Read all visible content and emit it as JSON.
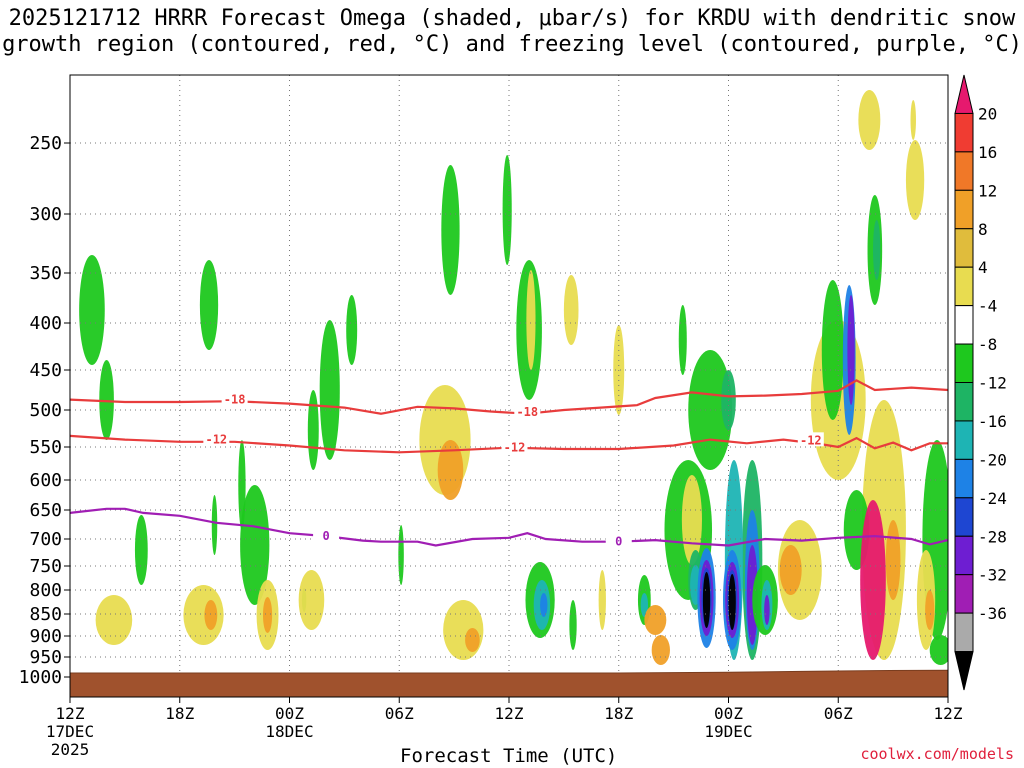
{
  "page": {
    "title_line1": "2025121712 HRRR Forecast Omega (shaded, μbar/s) for KRDU with dendritic snow",
    "title_line2": "growth region (contoured, red, °C) and freezing level (contoured, purple, °C)",
    "credit": "coolwx.com/models"
  },
  "chart_data": {
    "type": "heatmap",
    "title": "2025121712 HRRR Forecast Omega (shaded, μbar/s) for KRDU with dendritic snow growth region (contoured, red, °C) and freezing level (contoured, purple, °C)",
    "xlabel": "Forecast Time (UTC)",
    "ylabel": "",
    "x_range_hours": [
      0,
      48
    ],
    "y_range_hPa": [
      1000,
      200
    ],
    "x_ticks": [
      {
        "h": 0,
        "lines": [
          "12Z",
          "17DEC",
          "2025"
        ]
      },
      {
        "h": 6,
        "lines": [
          "18Z"
        ]
      },
      {
        "h": 12,
        "lines": [
          "00Z",
          "18DEC"
        ]
      },
      {
        "h": 18,
        "lines": [
          "06Z"
        ]
      },
      {
        "h": 24,
        "lines": [
          "12Z"
        ]
      },
      {
        "h": 30,
        "lines": [
          "18Z"
        ]
      },
      {
        "h": 36,
        "lines": [
          "00Z",
          "19DEC"
        ]
      },
      {
        "h": 42,
        "lines": [
          "06Z"
        ]
      },
      {
        "h": 48,
        "lines": [
          "12Z"
        ]
      }
    ],
    "y_ticks": [
      250,
      300,
      350,
      400,
      450,
      500,
      550,
      600,
      650,
      700,
      750,
      800,
      850,
      900,
      950,
      1000
    ],
    "colorbar": {
      "labels": [
        "20",
        "16",
        "12",
        "8",
        "4",
        "-4",
        "-8",
        "-12",
        "-16",
        "-20",
        "-24",
        "-28",
        "-32",
        "-36"
      ],
      "colors": [
        "#e6196e",
        "#f03c32",
        "#f07828",
        "#f0a028",
        "#e0bc3c",
        "#e8dc50",
        "#ffffff",
        "#1ec81e",
        "#1eb464",
        "#1eb4b4",
        "#1e82e6",
        "#1e46d2",
        "#6e1ed2",
        "#a01eb4",
        "#aaaaaa",
        "#000000"
      ]
    },
    "contours": [
      {
        "name": "-18",
        "color": "#e83c3c",
        "label": "-18",
        "points": [
          [
            0,
            487
          ],
          [
            3,
            490
          ],
          [
            6,
            490
          ],
          [
            9,
            489
          ],
          [
            12,
            492
          ],
          [
            15,
            497
          ],
          [
            17,
            505
          ],
          [
            19,
            496
          ],
          [
            21,
            498
          ],
          [
            23,
            502
          ],
          [
            25,
            505
          ],
          [
            27,
            500
          ],
          [
            29,
            497
          ],
          [
            31,
            494
          ],
          [
            32,
            485
          ],
          [
            34,
            478
          ],
          [
            36,
            483
          ],
          [
            38,
            482
          ],
          [
            40,
            480
          ],
          [
            42,
            476
          ],
          [
            43,
            463
          ],
          [
            44,
            475
          ],
          [
            46,
            472
          ],
          [
            48,
            475
          ]
        ],
        "labels": [
          {
            "h": 9,
            "p": 487
          },
          {
            "h": 25,
            "p": 503
          }
        ]
      },
      {
        "name": "-12",
        "color": "#e83c3c",
        "label": "-12",
        "points": [
          [
            0,
            535
          ],
          [
            3,
            540
          ],
          [
            6,
            543
          ],
          [
            9,
            543
          ],
          [
            12,
            548
          ],
          [
            15,
            555
          ],
          [
            18,
            558
          ],
          [
            21,
            555
          ],
          [
            24,
            551
          ],
          [
            27,
            553
          ],
          [
            30,
            553
          ],
          [
            33,
            548
          ],
          [
            35,
            540
          ],
          [
            37,
            545
          ],
          [
            39,
            540
          ],
          [
            41,
            546
          ],
          [
            42,
            550
          ],
          [
            43,
            538
          ],
          [
            44,
            552
          ],
          [
            45,
            544
          ],
          [
            46,
            555
          ],
          [
            47,
            545
          ],
          [
            48,
            545
          ]
        ],
        "labels": [
          {
            "h": 8,
            "p": 540
          },
          {
            "h": 24.3,
            "p": 551
          },
          {
            "h": 40.5,
            "p": 541
          }
        ]
      },
      {
        "name": "0",
        "color": "#a01eb4",
        "label": "0",
        "points": [
          [
            0,
            655
          ],
          [
            2,
            648
          ],
          [
            3,
            648
          ],
          [
            4,
            655
          ],
          [
            6,
            660
          ],
          [
            8,
            672
          ],
          [
            10,
            678
          ],
          [
            12,
            690
          ],
          [
            14,
            695
          ],
          [
            16,
            703
          ],
          [
            17,
            705
          ],
          [
            19,
            705
          ],
          [
            20,
            712
          ],
          [
            22,
            700
          ],
          [
            24,
            698
          ],
          [
            25,
            690
          ],
          [
            26,
            700
          ],
          [
            28,
            705
          ],
          [
            30,
            705
          ],
          [
            32,
            702
          ],
          [
            34,
            708
          ],
          [
            36,
            712
          ],
          [
            38,
            700
          ],
          [
            40,
            703
          ],
          [
            42,
            698
          ],
          [
            44,
            695
          ],
          [
            46,
            700
          ],
          [
            47,
            710
          ],
          [
            48,
            702
          ]
        ],
        "labels": [
          {
            "h": 14,
            "p": 695
          },
          {
            "h": 30,
            "p": 705
          }
        ]
      }
    ],
    "shaded_regions_note": "Omega shaded: yellow/orange = positive (sinking), green/blue/purple/black/magenta = negative ascent and strong extremes",
    "terrain_bottom": "surface ground below ~990 hPa"
  }
}
